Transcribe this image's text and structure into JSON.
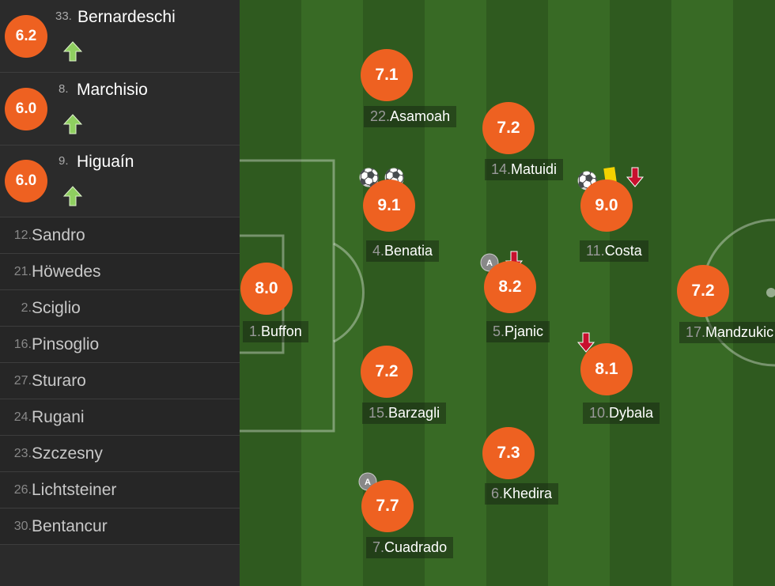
{
  "substitutes": [
    {
      "rating": "6.2",
      "number": "33.",
      "name": "Bernardeschi"
    },
    {
      "rating": "6.0",
      "number": "8.",
      "name": "Marchisio"
    },
    {
      "rating": "6.0",
      "number": "9.",
      "name": "Higuaín"
    }
  ],
  "bench": [
    {
      "number": "12.",
      "name": "Sandro"
    },
    {
      "number": "21.",
      "name": "Höwedes"
    },
    {
      "number": "2.",
      "name": "Sciglio"
    },
    {
      "number": "16.",
      "name": "Pinsoglio"
    },
    {
      "number": "27.",
      "name": "Sturaro"
    },
    {
      "number": "24.",
      "name": "Rugani"
    },
    {
      "number": "23.",
      "name": "Szczesny"
    },
    {
      "number": "26.",
      "name": "Lichtsteiner"
    },
    {
      "number": "30.",
      "name": "Bentancur"
    }
  ],
  "players": [
    {
      "rating": "7.1",
      "number": "22.",
      "name": "Asamoah"
    },
    {
      "rating": "7.2",
      "number": "14.",
      "name": "Matuidi"
    },
    {
      "rating": "9.1",
      "number": "4.",
      "name": "Benatia"
    },
    {
      "rating": "9.0",
      "number": "11.",
      "name": "Costa"
    },
    {
      "rating": "8.0",
      "number": "1.",
      "name": "Buffon"
    },
    {
      "rating": "8.2",
      "number": "5.",
      "name": "Pjanic"
    },
    {
      "rating": "7.2",
      "number": "17.",
      "name": "Mandzukic"
    },
    {
      "rating": "7.2",
      "number": "15.",
      "name": "Barzagli"
    },
    {
      "rating": "8.1",
      "number": "10.",
      "name": "Dybala"
    },
    {
      "rating": "7.3",
      "number": "6.",
      "name": "Khedira"
    },
    {
      "rating": "7.7",
      "number": "7.",
      "name": "Cuadrado"
    }
  ]
}
